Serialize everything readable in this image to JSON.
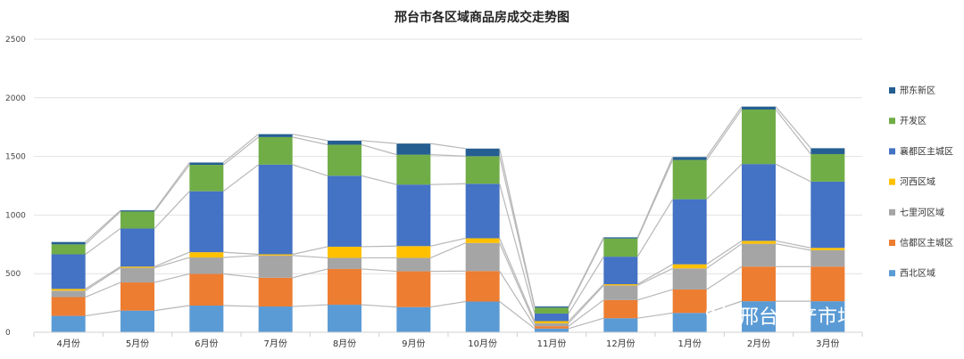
{
  "chart_data": {
    "type": "bar",
    "stacked": true,
    "title": "邢台市各区域商品房成交走势图",
    "categories": [
      "4月份",
      "5月份",
      "6月份",
      "7月份",
      "8月份",
      "9月份",
      "10月份",
      "11月份",
      "12月份",
      "1月份",
      "2月份",
      "3月份"
    ],
    "ylim": [
      0,
      2500
    ],
    "yticks": [
      0,
      500,
      1000,
      1500,
      2000,
      2500
    ],
    "grid": true,
    "legend_position": "right",
    "series": [
      {
        "name": "西北区域",
        "color": "#5b9bd5",
        "values": [
          140,
          185,
          228,
          220,
          235,
          215,
          262,
          32,
          120,
          165,
          265,
          265
        ]
      },
      {
        "name": "信都区主城区",
        "color": "#ed7d31",
        "values": [
          160,
          240,
          270,
          245,
          305,
          305,
          260,
          20,
          155,
          200,
          295,
          295
        ]
      },
      {
        "name": "七里河区域",
        "color": "#a5a5a5",
        "values": [
          55,
          125,
          140,
          190,
          95,
          115,
          240,
          25,
          125,
          180,
          195,
          140
        ]
      },
      {
        "name": "河西区域",
        "color": "#ffc000",
        "values": [
          15,
          10,
          45,
          10,
          95,
          100,
          40,
          18,
          10,
          35,
          25,
          20
        ]
      },
      {
        "name": "襄都区主城区",
        "color": "#4472c4",
        "values": [
          295,
          325,
          520,
          765,
          605,
          525,
          465,
          65,
          235,
          555,
          655,
          565
        ]
      },
      {
        "name": "开发区",
        "color": "#70ad47",
        "values": [
          85,
          145,
          225,
          235,
          265,
          255,
          235,
          50,
          155,
          335,
          465,
          235
        ]
      },
      {
        "name": "邢东新区",
        "color": "#255e91",
        "values": [
          20,
          10,
          20,
          25,
          35,
          95,
          65,
          10,
          10,
          25,
          25,
          50
        ]
      }
    ]
  },
  "watermark": {
    "icon": "wechat-icon",
    "text": "邢台地产市场研究"
  }
}
